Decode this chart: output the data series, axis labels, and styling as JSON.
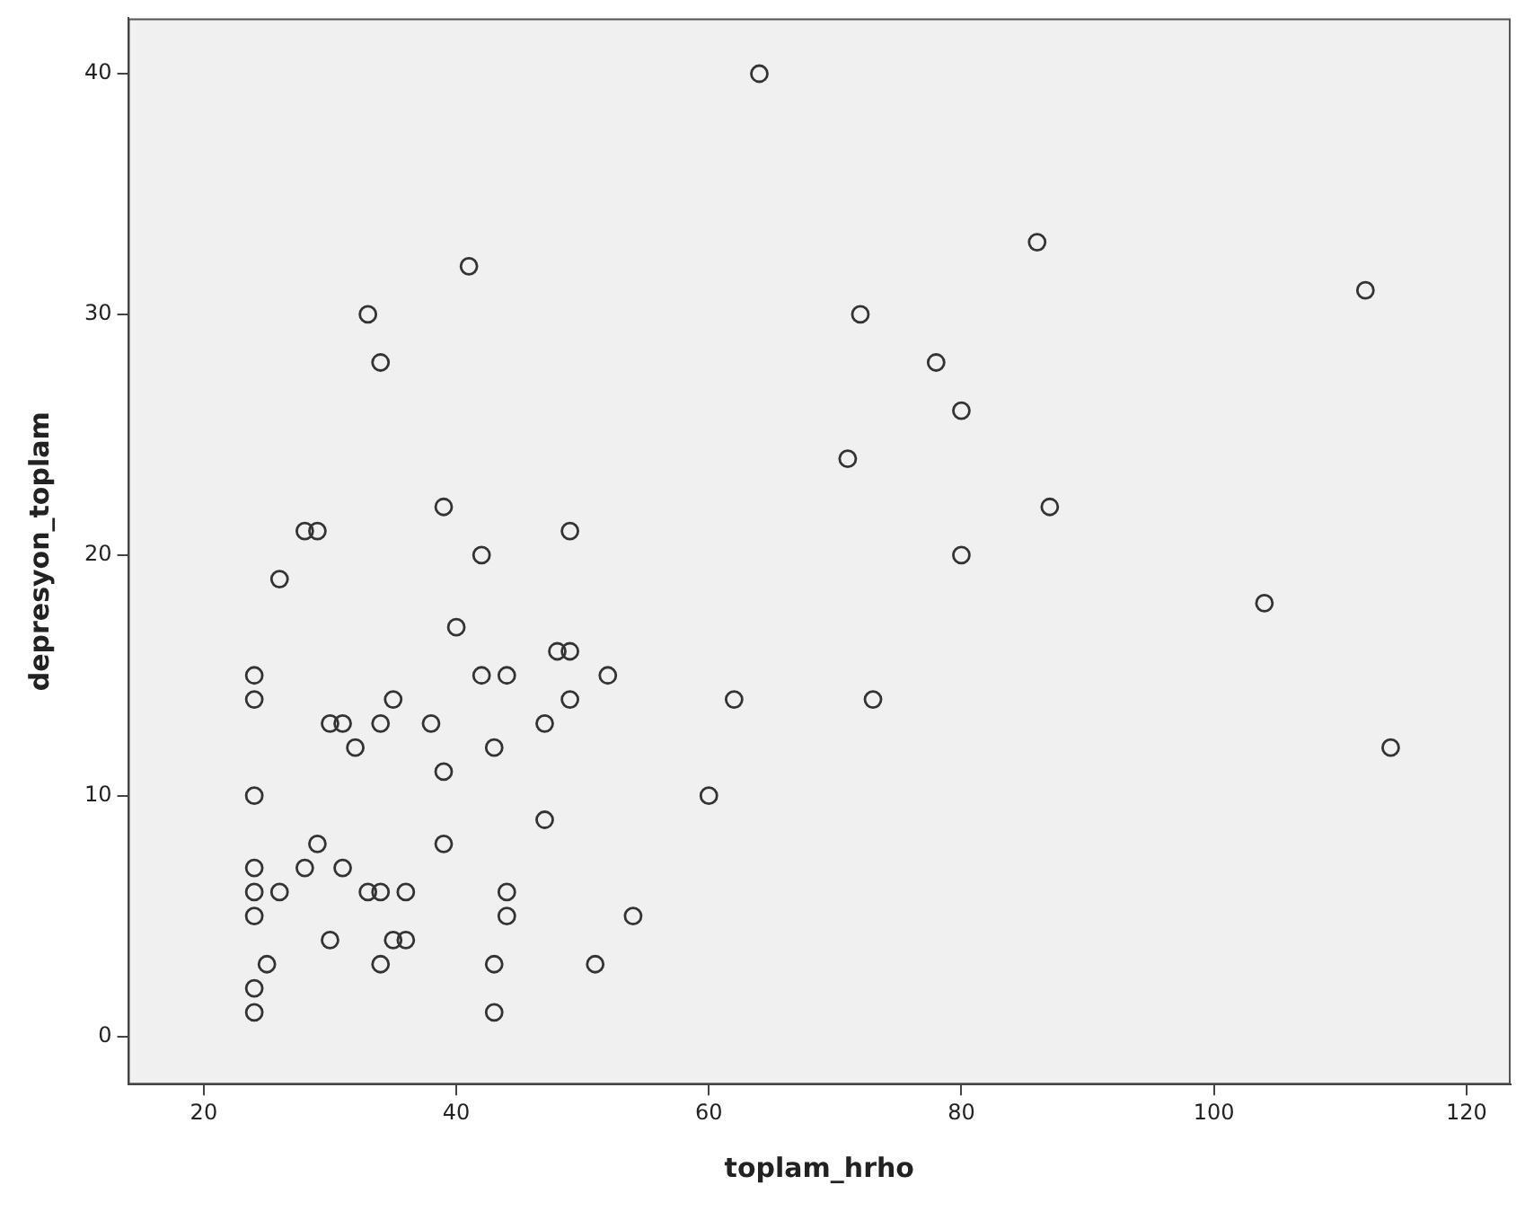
{
  "chart_data": {
    "type": "scatter",
    "xlabel": "toplam_hrho",
    "ylabel": "depresyon_toplam",
    "xlim": [
      14,
      123.5
    ],
    "ylim": [
      -2,
      42.3
    ],
    "xticks": [
      20,
      40,
      60,
      80,
      100,
      120
    ],
    "yticks": [
      0,
      10,
      20,
      30,
      40
    ],
    "grid": false,
    "legend": false,
    "marker": "circle",
    "series": [
      {
        "color": "#333333",
        "x": [
          64,
          86,
          41,
          112,
          33,
          72,
          34,
          78,
          80,
          71,
          39,
          87,
          28,
          29,
          49,
          42,
          80,
          26,
          104,
          40,
          48,
          49,
          24,
          42,
          44,
          52,
          24,
          35,
          49,
          62,
          73,
          30,
          31,
          34,
          38,
          47,
          32,
          43,
          114,
          39,
          24,
          60,
          47,
          29,
          39,
          24,
          28,
          31,
          24,
          26,
          33,
          34,
          36,
          44,
          24,
          44,
          54,
          30,
          35,
          36,
          25,
          34,
          43,
          51,
          24,
          24,
          43
        ],
        "values": [
          40,
          33,
          32,
          31,
          30,
          30,
          28,
          28,
          26,
          24,
          22,
          22,
          21,
          21,
          21,
          20,
          20,
          19,
          18,
          17,
          16,
          16,
          15,
          15,
          15,
          15,
          14,
          14,
          14,
          14,
          14,
          13,
          13,
          13,
          13,
          13,
          12,
          12,
          12,
          11,
          10,
          10,
          9,
          8,
          8,
          7,
          7,
          7,
          6,
          6,
          6,
          6,
          6,
          6,
          5,
          5,
          5,
          4,
          4,
          4,
          3,
          3,
          3,
          3,
          2,
          1,
          1
        ]
      }
    ]
  }
}
